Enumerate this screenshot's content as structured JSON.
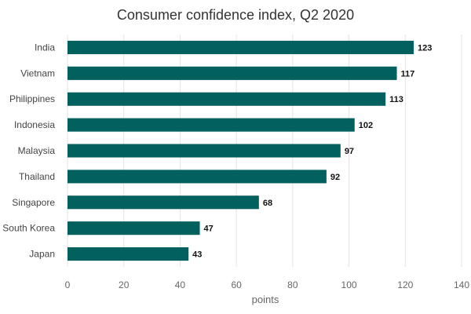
{
  "chart_data": {
    "type": "bar",
    "orientation": "horizontal",
    "title": "Consumer confidence index, Q2 2020",
    "xlabel": "points",
    "ylabel": "",
    "categories": [
      "India",
      "Vietnam",
      "Philippines",
      "Indonesia",
      "Malaysia",
      "Thailand",
      "Singapore",
      "South Korea",
      "Japan"
    ],
    "values": [
      123,
      117,
      113,
      102,
      97,
      92,
      68,
      47,
      43
    ],
    "value_labels": [
      "123",
      "117",
      "113",
      "102",
      "97",
      "92",
      "68",
      "47",
      "43"
    ],
    "xlim": [
      0,
      140
    ],
    "xticks": [
      0,
      20,
      40,
      60,
      80,
      100,
      120,
      140
    ],
    "xtick_labels": [
      "0",
      "20",
      "40",
      "60",
      "80",
      "100",
      "120",
      "140"
    ],
    "grid": true,
    "legend": "none",
    "bar_color": "#02605f"
  }
}
